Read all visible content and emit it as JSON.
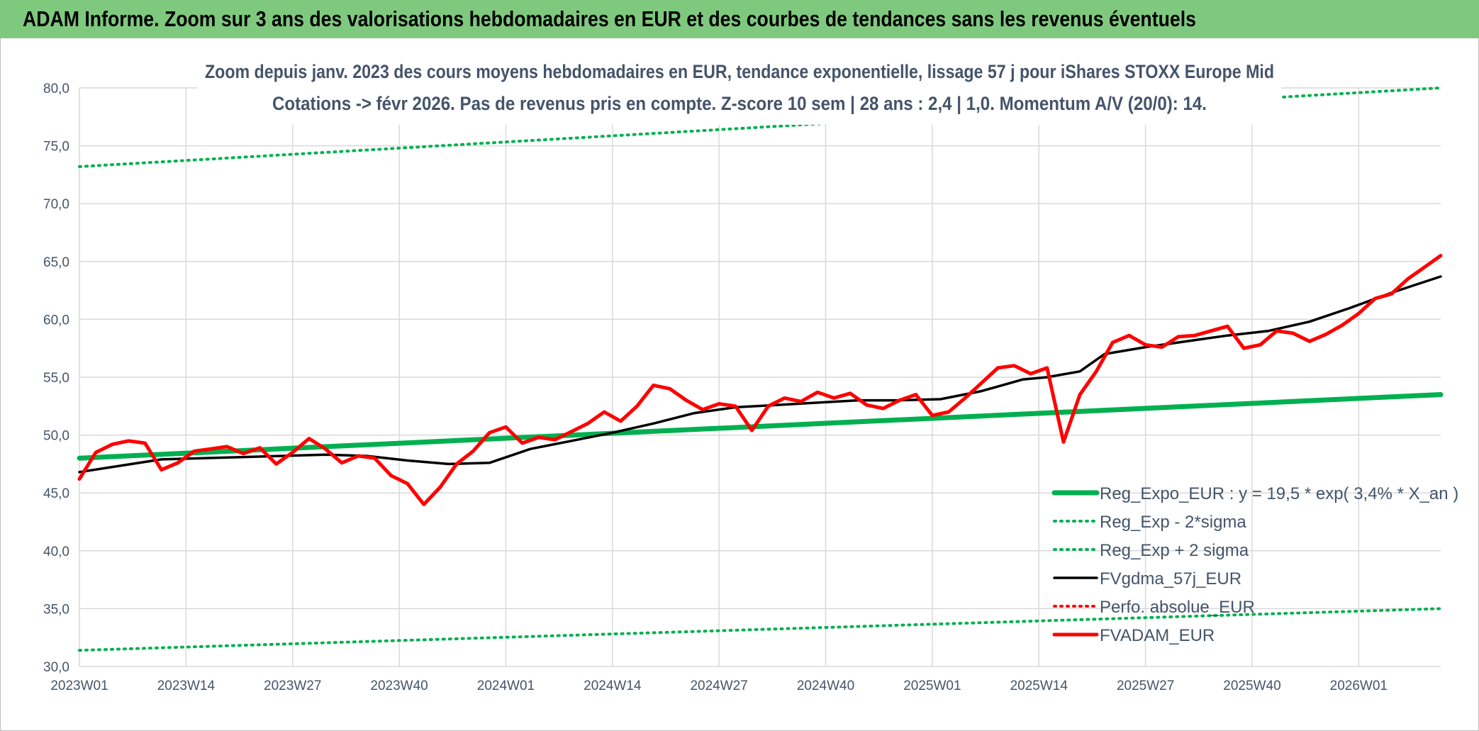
{
  "header": {
    "title": "ADAM Informe. Zoom sur 3 ans des valorisations hebdomadaires en EUR et des courbes de tendances sans les revenus éventuels"
  },
  "colors": {
    "header_bg": "#7fc97f",
    "reg_expo": "#00b050",
    "sigma_bands": "#00b050",
    "fvgdma": "#000000",
    "perfo": "#ff0000",
    "fvadam": "#ff0000",
    "grid": "#d9d9d9",
    "text": "#44546a"
  },
  "chart_data": {
    "type": "line",
    "title": "Zoom depuis janv. 2023 des cours moyens hebdomadaires en EUR, tendance exponentielle, lissage 57 j pour iShares STOXX Europe Mid",
    "subtitle": "Cotations -> févr 2026. Pas de revenus pris en compte. Z-score 10 sem | 28 ans : 2,4 | 1,0. Momentum A/V (20/0): 14.",
    "xlabel": "",
    "ylabel": "",
    "ylim": [
      30,
      80
    ],
    "yticks": [
      "30,0",
      "35,0",
      "40,0",
      "45,0",
      "50,0",
      "55,0",
      "60,0",
      "65,0",
      "70,0",
      "75,0",
      "80,0"
    ],
    "xticks": [
      "2023W01",
      "2023W14",
      "2023W27",
      "2023W40",
      "2024W01",
      "2024W14",
      "2024W27",
      "2024W40",
      "2025W01",
      "2025W14",
      "2025W27",
      "2025W40",
      "2026W01"
    ],
    "week_step_per_tick": 13,
    "n_weeks": 167,
    "grid": true,
    "legend_position": "bottom-right",
    "series": [
      {
        "name": "Reg_Expo_EUR : y = 19,5 * exp( 3,4% *  X_an )",
        "style": "solid-thick",
        "color": "#00b050",
        "x": [
          0,
          166
        ],
        "values": [
          48.0,
          53.5
        ]
      },
      {
        "name": "Reg_Exp - 2*sigma",
        "style": "dotted",
        "color": "#00b050",
        "x": [
          0,
          166
        ],
        "values": [
          31.4,
          35.0
        ]
      },
      {
        "name": "Reg_Exp + 2 sigma",
        "style": "dotted",
        "color": "#00b050",
        "x": [
          0,
          166
        ],
        "values": [
          73.2,
          80.0
        ]
      },
      {
        "name": "FVgdma_57j_EUR",
        "style": "solid",
        "color": "#000000",
        "x": [
          0,
          10,
          20,
          30,
          35,
          40,
          45,
          50,
          55,
          60,
          65,
          70,
          75,
          80,
          85,
          90,
          95,
          100,
          105,
          110,
          115,
          118,
          122,
          125,
          130,
          135,
          140,
          145,
          150,
          155,
          160,
          163,
          166
        ],
        "values": [
          46.8,
          47.9,
          48.1,
          48.3,
          48.2,
          47.8,
          47.5,
          47.6,
          48.8,
          49.5,
          50.2,
          51.0,
          51.9,
          52.4,
          52.6,
          52.8,
          53.0,
          53.0,
          53.1,
          53.8,
          54.8,
          55.0,
          55.5,
          57.0,
          57.6,
          58.1,
          58.6,
          59.0,
          59.8,
          61.0,
          62.3,
          63.0,
          63.7
        ]
      },
      {
        "name": "Perfo. absolue_EUR",
        "style": "dotted",
        "color": "#ff0000",
        "x": [],
        "values": []
      },
      {
        "name": "FVADAM_EUR",
        "style": "solid-thick",
        "color": "#ff0000",
        "x": [
          0,
          2,
          4,
          6,
          8,
          10,
          12,
          14,
          16,
          18,
          20,
          22,
          24,
          26,
          28,
          30,
          32,
          34,
          36,
          38,
          40,
          42,
          44,
          46,
          48,
          50,
          52,
          54,
          56,
          58,
          60,
          62,
          64,
          66,
          68,
          70,
          72,
          74,
          76,
          78,
          80,
          82,
          84,
          86,
          88,
          90,
          92,
          94,
          96,
          98,
          100,
          102,
          104,
          106,
          108,
          110,
          112,
          114,
          116,
          118,
          120,
          122,
          124,
          126,
          128,
          130,
          132,
          134,
          136,
          138,
          140,
          142,
          144,
          146,
          148,
          150,
          152,
          154,
          156,
          158,
          160,
          162,
          164,
          166
        ],
        "values": [
          46.2,
          48.5,
          49.2,
          49.5,
          49.3,
          47.0,
          47.6,
          48.6,
          48.8,
          49.0,
          48.4,
          48.9,
          47.5,
          48.5,
          49.7,
          48.8,
          47.6,
          48.2,
          48.0,
          46.5,
          45.8,
          44.0,
          45.5,
          47.5,
          48.6,
          50.2,
          50.7,
          49.3,
          49.8,
          49.6,
          50.3,
          51.0,
          52.0,
          51.2,
          52.5,
          54.3,
          54.0,
          53.0,
          52.2,
          52.7,
          52.5,
          50.4,
          52.5,
          53.2,
          52.9,
          53.7,
          53.2,
          53.6,
          52.6,
          52.3,
          53.0,
          53.5,
          51.7,
          52.0,
          53.2,
          54.5,
          55.8,
          56.0,
          55.3,
          55.8,
          49.4,
          53.5,
          55.5,
          58.0,
          58.6,
          57.8,
          57.6,
          58.5,
          58.6,
          59.0,
          59.4,
          57.5,
          57.8,
          59.0,
          58.8,
          58.1,
          58.7,
          59.5,
          60.5,
          61.8,
          62.2,
          63.5,
          64.5,
          65.5
        ]
      }
    ]
  }
}
